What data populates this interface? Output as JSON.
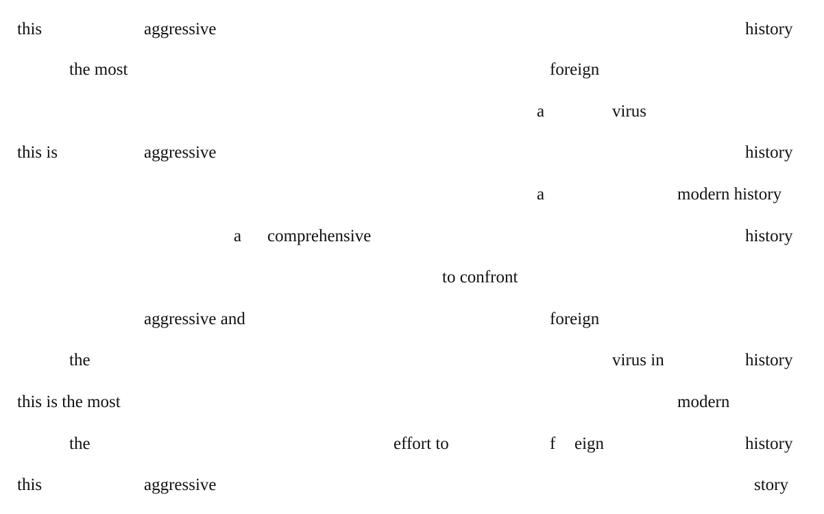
{
  "lines": [
    {
      "words": [
        "this",
        "aggressive",
        "history"
      ]
    },
    {
      "words": [
        "the most",
        "foreign"
      ]
    },
    {
      "words": [
        "a",
        "virus"
      ]
    },
    {
      "words": [
        "this is",
        "aggressive",
        "history"
      ]
    },
    {
      "words": [
        "a",
        "modern history"
      ]
    },
    {
      "words": [
        "a",
        "comprehensive",
        "history"
      ]
    },
    {
      "words": [
        "to confront"
      ]
    },
    {
      "words": [
        "aggressive and",
        "foreign"
      ]
    },
    {
      "words": [
        "the",
        "virus in",
        "history"
      ]
    },
    {
      "words": [
        "this is the most",
        "modern"
      ]
    },
    {
      "words": [
        "the",
        "effort to",
        "f",
        "eign",
        "history"
      ]
    },
    {
      "words": [
        "this",
        "aggressive",
        "story"
      ]
    }
  ]
}
